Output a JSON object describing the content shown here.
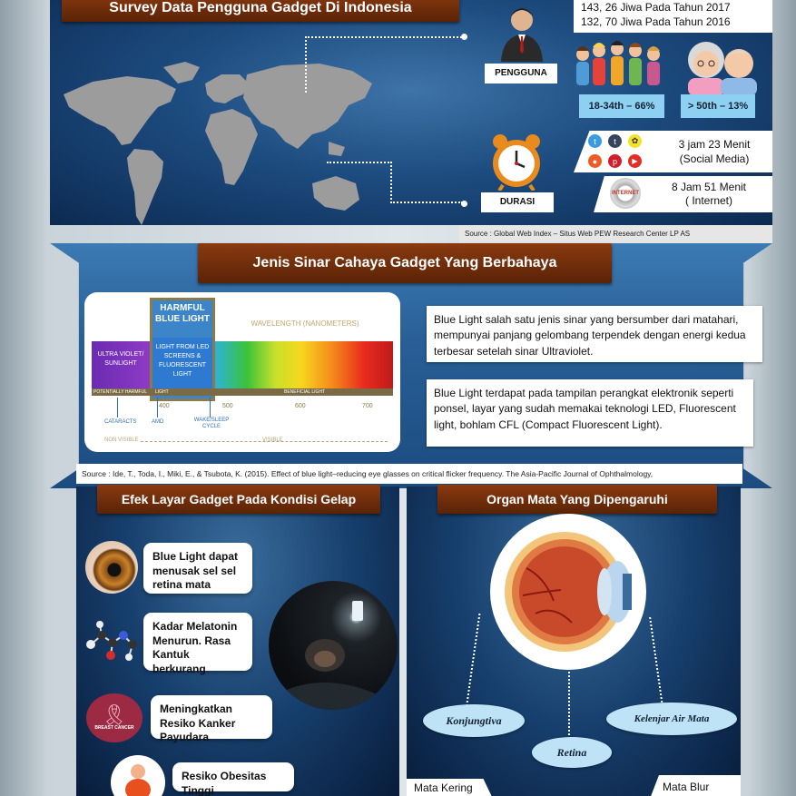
{
  "survey": {
    "title": "Survey Data Pengguna Gadget Di Indonesia",
    "users_2017": "143, 26 Jiwa Pada Tahun 2017",
    "users_2016": "132, 70 Jiwa Pada Tahun 2016",
    "pengguna_label": "PENGGUNA",
    "durasi_label": "DURASI",
    "age_young": "18-34th – 66%",
    "age_old": "> 50th – 13%",
    "social_time": "3 jam 23 Menit",
    "social_label": "(Social Media)",
    "internet_time": "8 Jam 51 Menit",
    "internet_label": "( Internet)",
    "internet_icon_text": "INTERNET",
    "source": "Source : Global Web Index – Situs Web PEW Research Center LP AS"
  },
  "rays": {
    "title": "Jenis Sinar Cahaya Gadget Yang Berbahaya",
    "harmful_title": "HARMFUL BLUE LIGHT",
    "uv_label": "ULTRA VIOLET/ SUNLIGHT",
    "blue_source": "LIGHT FROM LED SCREENS & FLUORESCENT LIGHT",
    "wavelength_label": "WAVELENGTH (NANOMETERS)",
    "potentially_harmful": "POTENTIALLY HARMFUL",
    "light_label": "LIGHT",
    "beneficial_light": "BENEFICIAL LIGHT",
    "ticks": [
      "400",
      "500",
      "600",
      "700"
    ],
    "cataracts": "CATARACTS",
    "amd": "AMD",
    "wake_sleep": "WAKE/SLEEP CYCLE",
    "non_visible": "NON VISIBLE",
    "visible": "VISIBLE",
    "text1": "Blue Light salah satu jenis sinar yang bersumber dari matahari, mempunyai panjang gelombang terpendek dengan energi kedua terbesar setelah sinar Ultraviolet.",
    "text2": "Blue Light terdapat pada tampilan perangkat elektronik seperti ponsel, layar yang sudah memakai teknologi LED, Fluorescent light, bohlam CFL (Compact Fluorescent Light).",
    "source": "Source : Ide, T., Toda, I., Miki, E., & Tsubota, K. (2015). Effect of blue light–reducing eye glasses on critical flicker frequency. The Asia-Pacific Journal of Ophthalmology,"
  },
  "effects": {
    "title": "Efek Layar Gadget Pada Kondisi Gelap",
    "items": [
      "Blue Light dapat menusak sel sel retina mata",
      "Kadar Melatonin Menurun. Rasa Kantuk berkurang",
      "Meningkatkan Resiko Kanker Payudara",
      "Resiko Obesitas Tinggi"
    ],
    "cancer_badge": "BREAST CANCER"
  },
  "organ": {
    "title": "Organ Mata Yang Dipengaruhi",
    "labels": [
      "Konjungtiva",
      "Retina",
      "Kelenjar Air Mata"
    ],
    "mata_kering": "Mata Kering",
    "mata_blur": "Mata Blur"
  }
}
